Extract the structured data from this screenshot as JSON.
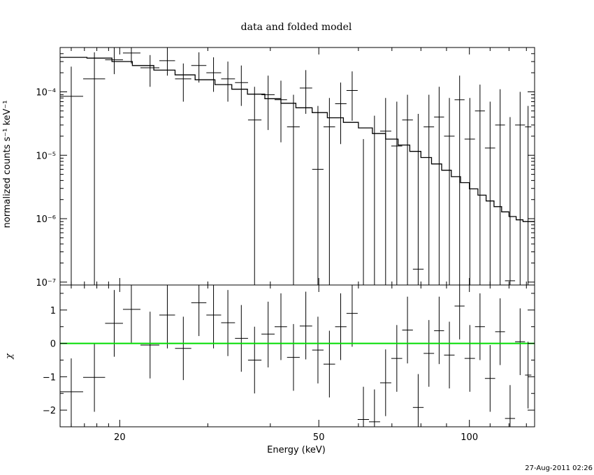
{
  "chart_data": [
    {
      "panel": "spectrum",
      "type": "line",
      "title": "data and folded model",
      "ylabel": "normalized counts s⁻¹ keV⁻¹",
      "xlabel": "",
      "xscale": "log",
      "yscale": "log",
      "xlim": [
        15.2,
        135
      ],
      "ylim": [
        9e-08,
        0.0005
      ],
      "ytick_labels": [
        "10⁻⁴",
        "10⁻⁵",
        "10⁻⁶",
        "10⁻⁷"
      ],
      "ytick_values": [
        0.0001,
        1e-05,
        1e-06,
        1e-07
      ],
      "model_edges": [
        15.2,
        17.2,
        19.3,
        21.2,
        23.4,
        25.8,
        28.3,
        31.0,
        33.5,
        36.0,
        39.0,
        42.0,
        45.0,
        48.5,
        52.0,
        56.0,
        60.0,
        64.0,
        68.0,
        72.0,
        76.0,
        80.0,
        84.0,
        88.0,
        92.0,
        96.0,
        100.0,
        104.0,
        108.0,
        112.0,
        116.0,
        120.0,
        124.0,
        128.0,
        132.0,
        135.0
      ],
      "model_values": [
        0.00035,
        0.00034,
        0.0003,
        0.00026,
        0.00022,
        0.000185,
        0.000155,
        0.00013,
        0.00011,
        9.2e-05,
        7.8e-05,
        6.6e-05,
        5.6e-05,
        4.7e-05,
        3.9e-05,
        3.3e-05,
        2.7e-05,
        2.2e-05,
        1.8e-05,
        1.45e-05,
        1.15e-05,
        9.2e-06,
        7.3e-06,
        5.8e-06,
        4.6e-06,
        3.7e-06,
        2.95e-06,
        2.35e-06,
        1.9e-06,
        1.55e-06,
        1.28e-06,
        1.08e-06,
        9.6e-07,
        9e-07,
        9e-07
      ],
      "points": [
        {
          "x": 16.0,
          "xlo": 15.2,
          "xhi": 16.9,
          "y": 8.5e-05,
          "ylo": 1e-08,
          "yhi": 0.00025
        },
        {
          "x": 17.8,
          "xlo": 16.9,
          "xhi": 18.7,
          "y": 0.00016,
          "ylo": 1e-08,
          "yhi": 0.00042
        },
        {
          "x": 19.5,
          "xlo": 18.7,
          "xhi": 20.3,
          "y": 0.00032,
          "ylo": 0.00019,
          "yhi": 0.0005
        },
        {
          "x": 21.1,
          "xlo": 20.3,
          "xhi": 22.0,
          "y": 0.00041,
          "ylo": 0.00028,
          "yhi": 0.0005
        },
        {
          "x": 23.0,
          "xlo": 22.0,
          "xhi": 24.0,
          "y": 0.00024,
          "ylo": 0.00012,
          "yhi": 0.00038
        },
        {
          "x": 24.9,
          "xlo": 24.0,
          "xhi": 25.8,
          "y": 0.00031,
          "ylo": 0.00018,
          "yhi": 0.0005
        },
        {
          "x": 26.8,
          "xlo": 25.8,
          "xhi": 27.8,
          "y": 0.00016,
          "ylo": 7e-05,
          "yhi": 0.00028
        },
        {
          "x": 28.8,
          "xlo": 27.8,
          "xhi": 29.8,
          "y": 0.00026,
          "ylo": 0.00014,
          "yhi": 0.00042
        },
        {
          "x": 30.8,
          "xlo": 29.8,
          "xhi": 31.9,
          "y": 0.0002,
          "ylo": 0.0001,
          "yhi": 0.00035
        },
        {
          "x": 32.9,
          "xlo": 31.9,
          "xhi": 34.0,
          "y": 0.00016,
          "ylo": 7e-05,
          "yhi": 0.0003
        },
        {
          "x": 35.0,
          "xlo": 34.0,
          "xhi": 36.1,
          "y": 0.00014,
          "ylo": 6e-05,
          "yhi": 0.00026
        },
        {
          "x": 37.2,
          "xlo": 36.1,
          "xhi": 38.4,
          "y": 3.6e-05,
          "ylo": 1e-08,
          "yhi": 0.00012
        },
        {
          "x": 39.6,
          "xlo": 38.4,
          "xhi": 40.8,
          "y": 9e-05,
          "ylo": 2.5e-05,
          "yhi": 0.00018
        },
        {
          "x": 42.0,
          "xlo": 40.8,
          "xhi": 43.2,
          "y": 7.5e-05,
          "ylo": 1.6e-05,
          "yhi": 0.00015
        },
        {
          "x": 44.5,
          "xlo": 43.2,
          "xhi": 45.8,
          "y": 2.8e-05,
          "ylo": 1e-08,
          "yhi": 9e-05
        },
        {
          "x": 47.1,
          "xlo": 45.8,
          "xhi": 48.5,
          "y": 0.000115,
          "ylo": 4.5e-05,
          "yhi": 0.00022
        },
        {
          "x": 49.8,
          "xlo": 48.5,
          "xhi": 51.1,
          "y": 6e-06,
          "ylo": 1e-08,
          "yhi": 6e-05
        },
        {
          "x": 52.5,
          "xlo": 51.1,
          "xhi": 53.9,
          "y": 2.8e-05,
          "ylo": 1e-08,
          "yhi": 8e-05
        },
        {
          "x": 55.3,
          "xlo": 53.9,
          "xhi": 56.8,
          "y": 6.5e-05,
          "ylo": 1.5e-05,
          "yhi": 0.00014
        },
        {
          "x": 58.3,
          "xlo": 56.8,
          "xhi": 59.8,
          "y": 0.000105,
          "ylo": 3.5e-05,
          "yhi": 0.00021
        },
        {
          "x": 61.4,
          "xlo": 59.8,
          "xhi": 63.0,
          "y": 1e-08,
          "ylo": 1e-08,
          "yhi": 1.8e-05
        },
        {
          "x": 64.6,
          "xlo": 63.0,
          "xhi": 66.3,
          "y": 1e-08,
          "ylo": 1e-08,
          "yhi": 4.2e-05
        },
        {
          "x": 68.0,
          "xlo": 66.3,
          "xhi": 69.8,
          "y": 2.4e-05,
          "ylo": 1e-08,
          "yhi": 8e-05
        },
        {
          "x": 71.6,
          "xlo": 69.8,
          "xhi": 73.4,
          "y": 1.4e-05,
          "ylo": 1e-08,
          "yhi": 7e-05
        },
        {
          "x": 75.2,
          "xlo": 73.4,
          "xhi": 77.1,
          "y": 3.6e-05,
          "ylo": 1e-08,
          "yhi": 9e-05
        },
        {
          "x": 79.0,
          "xlo": 77.1,
          "xhi": 81.0,
          "y": 1.6e-07,
          "ylo": 1e-08,
          "yhi": 4.5e-05
        },
        {
          "x": 83.0,
          "xlo": 81.0,
          "xhi": 85.0,
          "y": 2.8e-05,
          "ylo": 1e-08,
          "yhi": 9e-05
        },
        {
          "x": 87.0,
          "xlo": 85.0,
          "xhi": 89.0,
          "y": 4e-05,
          "ylo": 1e-08,
          "yhi": 0.00012
        },
        {
          "x": 91.2,
          "xlo": 89.0,
          "xhi": 93.4,
          "y": 2e-05,
          "ylo": 1e-08,
          "yhi": 8e-05
        },
        {
          "x": 95.6,
          "xlo": 93.4,
          "xhi": 97.8,
          "y": 7.5e-05,
          "ylo": 1e-08,
          "yhi": 0.00018
        },
        {
          "x": 100.2,
          "xlo": 97.8,
          "xhi": 102.6,
          "y": 1.8e-05,
          "ylo": 1e-08,
          "yhi": 8e-05
        },
        {
          "x": 105.0,
          "xlo": 102.6,
          "xhi": 107.4,
          "y": 5e-05,
          "ylo": 1e-08,
          "yhi": 0.00013
        },
        {
          "x": 110.0,
          "xlo": 107.4,
          "xhi": 112.6,
          "y": 1.3e-05,
          "ylo": 1e-08,
          "yhi": 7e-05
        },
        {
          "x": 115.2,
          "xlo": 112.6,
          "xhi": 117.8,
          "y": 3e-05,
          "ylo": 1e-08,
          "yhi": 0.00011
        },
        {
          "x": 120.6,
          "xlo": 117.8,
          "xhi": 123.4,
          "y": 1.05e-07,
          "ylo": 1e-08,
          "yhi": 4e-05
        },
        {
          "x": 126.3,
          "xlo": 123.4,
          "xhi": 129.2,
          "y": 3e-05,
          "ylo": 1e-08,
          "yhi": 0.0001
        },
        {
          "x": 131.0,
          "xlo": 129.2,
          "xhi": 133.0,
          "y": 2.8e-05,
          "ylo": 1e-08,
          "yhi": 6e-05
        }
      ]
    },
    {
      "panel": "residuals",
      "type": "scatter",
      "title": "",
      "ylabel": "χ",
      "xlabel": "Energy (keV)",
      "xscale": "log",
      "xlim": [
        15.2,
        135
      ],
      "ylim": [
        -2.5,
        1.75
      ],
      "ytick_labels": [
        "1",
        "0",
        "−1",
        "−2"
      ],
      "ytick_values": [
        1,
        0,
        -1,
        -2
      ],
      "xtick_labels": [
        "20",
        "50",
        "100"
      ],
      "xtick_values": [
        20,
        50,
        100
      ],
      "zero_line_color": "#00dd00",
      "points": [
        {
          "x": 16.0,
          "xlo": 15.2,
          "xhi": 16.9,
          "y": -1.45,
          "ylo": -2.5,
          "yhi": -0.45
        },
        {
          "x": 17.8,
          "xlo": 16.9,
          "xhi": 18.7,
          "y": -1.02,
          "ylo": -2.05,
          "yhi": 0.0
        },
        {
          "x": 19.5,
          "xlo": 18.7,
          "xhi": 20.3,
          "y": 0.6,
          "ylo": -0.4,
          "yhi": 1.6
        },
        {
          "x": 21.1,
          "xlo": 20.3,
          "xhi": 22.0,
          "y": 1.02,
          "ylo": 0.02,
          "yhi": 1.75
        },
        {
          "x": 23.0,
          "xlo": 22.0,
          "xhi": 24.0,
          "y": -0.05,
          "ylo": -1.05,
          "yhi": 0.95
        },
        {
          "x": 24.9,
          "xlo": 24.0,
          "xhi": 25.8,
          "y": 0.85,
          "ylo": -0.15,
          "yhi": 1.75
        },
        {
          "x": 26.8,
          "xlo": 25.8,
          "xhi": 27.8,
          "y": -0.15,
          "ylo": -1.1,
          "yhi": 0.8
        },
        {
          "x": 28.8,
          "xlo": 27.8,
          "xhi": 29.8,
          "y": 1.22,
          "ylo": 0.22,
          "yhi": 1.75
        },
        {
          "x": 30.8,
          "xlo": 29.8,
          "xhi": 31.9,
          "y": 0.85,
          "ylo": -0.15,
          "yhi": 1.75
        },
        {
          "x": 32.9,
          "xlo": 31.9,
          "xhi": 34.0,
          "y": 0.62,
          "ylo": -0.38,
          "yhi": 1.6
        },
        {
          "x": 35.0,
          "xlo": 34.0,
          "xhi": 36.1,
          "y": 0.15,
          "ylo": -0.85,
          "yhi": 1.15
        },
        {
          "x": 37.2,
          "xlo": 36.1,
          "xhi": 38.4,
          "y": -0.5,
          "ylo": -1.5,
          "yhi": 0.5
        },
        {
          "x": 39.6,
          "xlo": 38.4,
          "xhi": 40.8,
          "y": 0.28,
          "ylo": -0.72,
          "yhi": 1.25
        },
        {
          "x": 42.0,
          "xlo": 40.8,
          "xhi": 43.2,
          "y": 0.5,
          "ylo": -0.5,
          "yhi": 1.5
        },
        {
          "x": 44.5,
          "xlo": 43.2,
          "xhi": 45.8,
          "y": -0.42,
          "ylo": -1.42,
          "yhi": 0.58
        },
        {
          "x": 47.1,
          "xlo": 45.8,
          "xhi": 48.5,
          "y": 0.52,
          "ylo": -0.48,
          "yhi": 1.55
        },
        {
          "x": 49.8,
          "xlo": 48.5,
          "xhi": 51.1,
          "y": -0.2,
          "ylo": -1.2,
          "yhi": 0.8
        },
        {
          "x": 52.5,
          "xlo": 51.1,
          "xhi": 53.9,
          "y": -0.62,
          "ylo": -1.62,
          "yhi": 0.38
        },
        {
          "x": 55.3,
          "xlo": 53.9,
          "xhi": 56.8,
          "y": 0.5,
          "ylo": -0.5,
          "yhi": 1.5
        },
        {
          "x": 58.3,
          "xlo": 56.8,
          "xhi": 59.8,
          "y": 0.9,
          "ylo": -0.1,
          "yhi": 1.75
        },
        {
          "x": 61.4,
          "xlo": 59.8,
          "xhi": 63.0,
          "y": -2.28,
          "ylo": -2.5,
          "yhi": -1.3
        },
        {
          "x": 64.6,
          "xlo": 63.0,
          "xhi": 66.3,
          "y": -2.35,
          "ylo": -2.5,
          "yhi": -1.38
        },
        {
          "x": 68.0,
          "xlo": 66.3,
          "xhi": 69.8,
          "y": -1.18,
          "ylo": -2.18,
          "yhi": -0.18
        },
        {
          "x": 71.6,
          "xlo": 69.8,
          "xhi": 73.4,
          "y": -0.45,
          "ylo": -1.45,
          "yhi": 0.55
        },
        {
          "x": 75.2,
          "xlo": 73.4,
          "xhi": 77.1,
          "y": 0.4,
          "ylo": -0.6,
          "yhi": 1.4
        },
        {
          "x": 79.0,
          "xlo": 77.1,
          "xhi": 81.0,
          "y": -1.92,
          "ylo": -2.5,
          "yhi": -0.92
        },
        {
          "x": 83.0,
          "xlo": 81.0,
          "xhi": 85.0,
          "y": -0.3,
          "ylo": -1.3,
          "yhi": 0.7
        },
        {
          "x": 87.0,
          "xlo": 85.0,
          "xhi": 89.0,
          "y": 0.38,
          "ylo": -0.62,
          "yhi": 1.4
        },
        {
          "x": 91.2,
          "xlo": 89.0,
          "xhi": 93.4,
          "y": -0.35,
          "ylo": -1.35,
          "yhi": 0.65
        },
        {
          "x": 95.6,
          "xlo": 93.4,
          "xhi": 97.8,
          "y": 1.12,
          "ylo": 0.12,
          "yhi": 1.75
        },
        {
          "x": 100.2,
          "xlo": 97.8,
          "xhi": 102.6,
          "y": -0.45,
          "ylo": -1.45,
          "yhi": 0.55
        },
        {
          "x": 105.0,
          "xlo": 102.6,
          "xhi": 107.4,
          "y": 0.5,
          "ylo": -0.5,
          "yhi": 1.5
        },
        {
          "x": 110.0,
          "xlo": 107.4,
          "xhi": 112.6,
          "y": -1.05,
          "ylo": -2.05,
          "yhi": -0.05
        },
        {
          "x": 115.2,
          "xlo": 112.6,
          "xhi": 117.8,
          "y": 0.35,
          "ylo": -0.65,
          "yhi": 1.35
        },
        {
          "x": 120.6,
          "xlo": 117.8,
          "xhi": 123.4,
          "y": -2.25,
          "ylo": -2.5,
          "yhi": -1.25
        },
        {
          "x": 126.3,
          "xlo": 123.4,
          "xhi": 129.2,
          "y": 0.05,
          "ylo": -0.95,
          "yhi": 1.05
        },
        {
          "x": 131.0,
          "xlo": 129.2,
          "xhi": 133.0,
          "y": -0.95,
          "ylo": -1.95,
          "yhi": 0.05
        }
      ]
    }
  ],
  "timestamp": "27-Aug-2011 02:26"
}
